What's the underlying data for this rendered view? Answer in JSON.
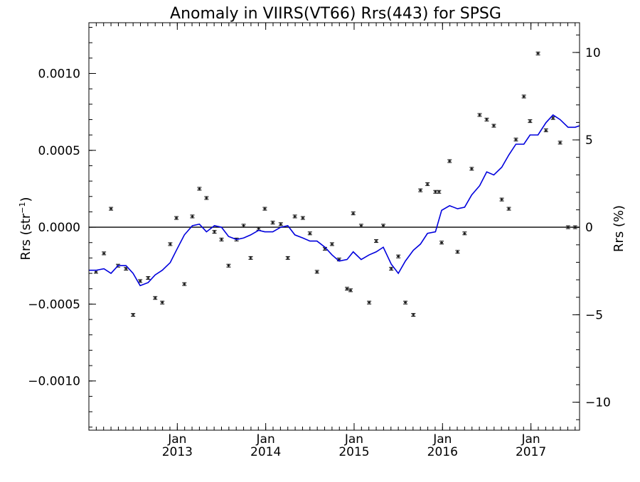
{
  "chart_data": {
    "type": "scatter",
    "title": "Anomaly in VIIRS(VT66) Rrs(443) for SPSG",
    "ylabel": "Rrs (str",
    "ylabel_sup": "−1",
    "ylabel_close": ")",
    "y2label": "Rrs (%)",
    "xlim": [
      2012.0,
      2017.55
    ],
    "ylim": [
      -0.00132,
      0.00133
    ],
    "y2lim": [
      -11.6,
      11.7
    ],
    "grid": false,
    "zero_line": true,
    "x_ticks": [
      {
        "value": 2013.0,
        "line1": "Jan",
        "line2": "2013"
      },
      {
        "value": 2014.0,
        "line1": "Jan",
        "line2": "2014"
      },
      {
        "value": 2015.0,
        "line1": "Jan",
        "line2": "2015"
      },
      {
        "value": 2016.0,
        "line1": "Jan",
        "line2": "2016"
      },
      {
        "value": 2017.0,
        "line1": "Jan",
        "line2": "2017"
      }
    ],
    "y_ticks": [
      {
        "value": 0.001,
        "label": "0.0010"
      },
      {
        "value": 0.0005,
        "label": "0.0005"
      },
      {
        "value": 0.0,
        "label": "0.0000"
      },
      {
        "value": -0.0005,
        "label": "−0.0005"
      },
      {
        "value": -0.001,
        "label": "−0.0010"
      }
    ],
    "y2_ticks": [
      {
        "value": 10,
        "label": "10"
      },
      {
        "value": 5,
        "label": "5"
      },
      {
        "value": 0,
        "label": "0"
      },
      {
        "value": -5,
        "label": "−5"
      },
      {
        "value": -10,
        "label": "−10"
      }
    ],
    "series": [
      {
        "kind": "points_with_error_bars",
        "color": "#000000",
        "error": 4e-06,
        "x": [
          2012.08,
          2012.17,
          2012.25,
          2012.33,
          2012.42,
          2012.5,
          2012.58,
          2012.67,
          2012.75,
          2012.83,
          2012.92,
          2012.99,
          2013.08,
          2013.17,
          2013.25,
          2013.33,
          2013.42,
          2013.5,
          2013.58,
          2013.67,
          2013.75,
          2013.83,
          2013.92,
          2013.99,
          2014.08,
          2014.17,
          2014.25,
          2014.33,
          2014.42,
          2014.5,
          2014.58,
          2014.67,
          2014.75,
          2014.83,
          2014.92,
          2014.96,
          2014.99,
          2015.08,
          2015.17,
          2015.25,
          2015.33,
          2015.42,
          2015.5,
          2015.58,
          2015.67,
          2015.75,
          2015.83,
          2015.92,
          2015.96,
          2015.99,
          2016.08,
          2016.17,
          2016.25,
          2016.33,
          2016.42,
          2016.5,
          2016.58,
          2016.67,
          2016.75,
          2016.83,
          2016.92,
          2016.99,
          2017.08,
          2017.17,
          2017.25,
          2017.33,
          2017.42,
          2017.5
        ],
        "y": [
          -0.00029,
          -0.00017,
          0.00012,
          -0.00025,
          -0.00027,
          -0.00057,
          -0.00035,
          -0.00033,
          -0.00046,
          -0.00049,
          -0.00011,
          6e-05,
          -0.00037,
          7e-05,
          0.00025,
          0.00019,
          -3e-05,
          -8e-05,
          -0.00025,
          -8e-05,
          1e-05,
          -0.0002,
          -1e-05,
          0.00012,
          3e-05,
          2e-05,
          -0.0002,
          7e-05,
          6e-05,
          -4e-05,
          -0.00029,
          -0.00014,
          -0.00011,
          -0.00021,
          -0.0004,
          -0.00041,
          9e-05,
          1e-05,
          -0.00049,
          -9e-05,
          1e-05,
          -0.00027,
          -0.00019,
          -0.00049,
          -0.00057,
          0.00024,
          0.00028,
          0.00023,
          0.00023,
          -0.0001,
          0.00043,
          -0.00016,
          -4e-05,
          0.00038,
          0.00073,
          0.0007,
          0.00066,
          0.00018,
          0.00012,
          0.00057,
          0.00085,
          0.00069,
          0.00113,
          0.00063,
          0.00071,
          0.00055,
          0.0,
          0.0
        ]
      },
      {
        "kind": "line",
        "color": "#0000dd",
        "x": [
          2012.0,
          2012.08,
          2012.17,
          2012.25,
          2012.33,
          2012.42,
          2012.5,
          2012.58,
          2012.67,
          2012.75,
          2012.83,
          2012.92,
          2012.99,
          2013.08,
          2013.17,
          2013.25,
          2013.33,
          2013.42,
          2013.5,
          2013.58,
          2013.67,
          2013.75,
          2013.83,
          2013.92,
          2013.99,
          2014.08,
          2014.17,
          2014.25,
          2014.33,
          2014.42,
          2014.5,
          2014.58,
          2014.67,
          2014.75,
          2014.83,
          2014.92,
          2014.99,
          2015.08,
          2015.17,
          2015.25,
          2015.33,
          2015.42,
          2015.5,
          2015.58,
          2015.67,
          2015.75,
          2015.83,
          2015.92,
          2015.99,
          2016.08,
          2016.17,
          2016.25,
          2016.33,
          2016.42,
          2016.5,
          2016.58,
          2016.67,
          2016.75,
          2016.83,
          2016.92,
          2016.99,
          2017.08,
          2017.17,
          2017.25,
          2017.33,
          2017.42,
          2017.5,
          2017.55
        ],
        "y": [
          -0.00028,
          -0.00028,
          -0.00027,
          -0.0003,
          -0.00025,
          -0.00025,
          -0.0003,
          -0.00038,
          -0.00036,
          -0.00031,
          -0.00028,
          -0.00023,
          -0.00015,
          -5e-05,
          1e-05,
          2e-05,
          -3e-05,
          1e-05,
          0.0,
          -6e-05,
          -8e-05,
          -7e-05,
          -5e-05,
          -2e-05,
          -3e-05,
          -3e-05,
          0.0,
          1e-05,
          -5e-05,
          -7e-05,
          -9e-05,
          -9e-05,
          -0.00013,
          -0.00018,
          -0.00022,
          -0.00021,
          -0.00016,
          -0.00021,
          -0.00018,
          -0.00016,
          -0.00013,
          -0.00024,
          -0.0003,
          -0.00022,
          -0.00015,
          -0.00011,
          -4e-05,
          -3e-05,
          0.00011,
          0.00014,
          0.00012,
          0.00013,
          0.00021,
          0.00027,
          0.00036,
          0.00034,
          0.00039,
          0.00047,
          0.00054,
          0.00054,
          0.0006,
          0.0006,
          0.00068,
          0.00073,
          0.0007,
          0.00065,
          0.00065,
          0.00066
        ]
      }
    ]
  }
}
